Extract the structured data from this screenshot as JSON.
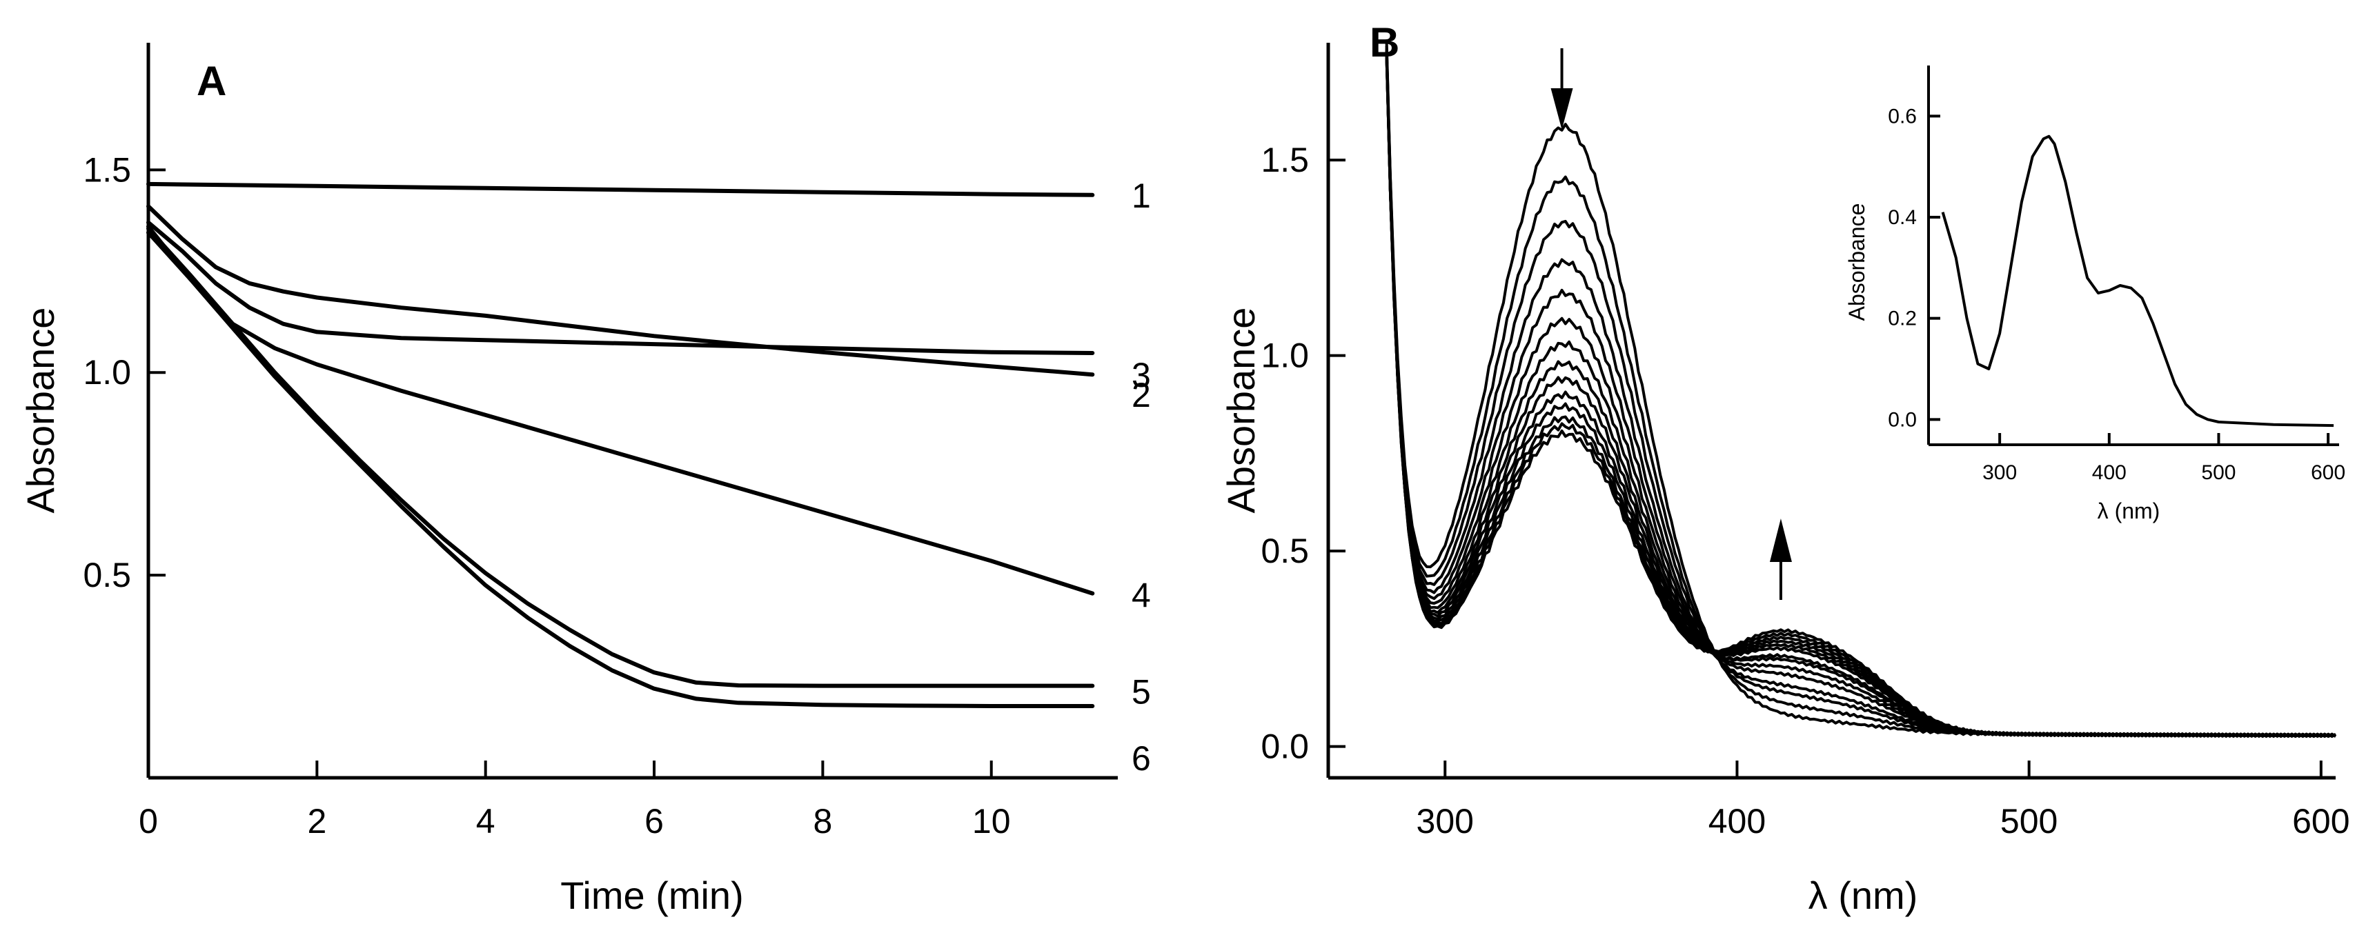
{
  "chart_data": [
    {
      "type": "line",
      "panel": "A",
      "xlabel": "Time (min)",
      "ylabel": "Absorbance",
      "xlim": [
        0,
        11.5
      ],
      "ylim": [
        0,
        1.8
      ],
      "xticks": [
        0,
        2,
        4,
        6,
        8,
        10
      ],
      "yticks": [
        0.5,
        1.0,
        1.5
      ],
      "series": [
        {
          "name": "1",
          "x": [
            0,
            2,
            4,
            6,
            8,
            10,
            11.2
          ],
          "y": [
            1.465,
            1.46,
            1.455,
            1.45,
            1.445,
            1.44,
            1.438
          ]
        },
        {
          "name": "2",
          "x": [
            0,
            0.4,
            0.8,
            1.2,
            1.6,
            2,
            3,
            4,
            6,
            8,
            10,
            11.2
          ],
          "y": [
            1.37,
            1.3,
            1.22,
            1.16,
            1.12,
            1.1,
            1.085,
            1.08,
            1.07,
            1.06,
            1.05,
            1.048
          ]
        },
        {
          "name": "3",
          "x": [
            0,
            0.4,
            0.8,
            1.2,
            1.6,
            2,
            3,
            4,
            6,
            8,
            10,
            11.2
          ],
          "y": [
            1.41,
            1.33,
            1.26,
            1.22,
            1.2,
            1.185,
            1.16,
            1.14,
            1.09,
            1.05,
            1.015,
            0.995
          ]
        },
        {
          "name": "4",
          "x": [
            0,
            0.5,
            1,
            1.5,
            2,
            3,
            4,
            5,
            6,
            7,
            8,
            9,
            10,
            11.2
          ],
          "y": [
            1.36,
            1.23,
            1.12,
            1.06,
            1.02,
            0.955,
            0.895,
            0.835,
            0.775,
            0.715,
            0.655,
            0.595,
            0.535,
            0.455
          ]
        },
        {
          "name": "5",
          "x": [
            0,
            0.5,
            1,
            1.5,
            2,
            2.5,
            3,
            3.5,
            4,
            4.5,
            5,
            5.5,
            6,
            6.5,
            7,
            8,
            9,
            10,
            11.2
          ],
          "y": [
            1.355,
            1.24,
            1.12,
            1.0,
            0.89,
            0.785,
            0.685,
            0.59,
            0.505,
            0.43,
            0.365,
            0.305,
            0.26,
            0.235,
            0.228,
            0.227,
            0.227,
            0.227,
            0.227
          ]
        },
        {
          "name": "6",
          "x": [
            0,
            0.5,
            1,
            1.5,
            2,
            2.5,
            3,
            3.5,
            4,
            4.5,
            5,
            5.5,
            6,
            6.5,
            7,
            8,
            9,
            10,
            11.2
          ],
          "y": [
            1.345,
            1.23,
            1.11,
            0.99,
            0.88,
            0.775,
            0.67,
            0.57,
            0.475,
            0.395,
            0.325,
            0.265,
            0.22,
            0.195,
            0.185,
            0.18,
            0.178,
            0.177,
            0.177
          ]
        }
      ],
      "curve_labels": [
        "1",
        "2",
        "3",
        "4",
        "5",
        "6"
      ]
    },
    {
      "type": "line",
      "panel": "B",
      "xlabel": "λ (nm)",
      "ylabel": "Absorbance",
      "xlim": [
        260,
        605
      ],
      "ylim": [
        -0.08,
        1.8
      ],
      "xticks": [
        300,
        400,
        500,
        600
      ],
      "yticks": [
        0.0,
        0.5,
        1.0,
        1.5
      ],
      "spectra_count": 14,
      "spectrum_peak_340nm": [
        1.565,
        1.43,
        1.32,
        1.22,
        1.14,
        1.07,
        1.01,
        0.96,
        0.92,
        0.88,
        0.85,
        0.82,
        0.8,
        0.78
      ],
      "spectrum_band_420nm": [
        0.07,
        0.1,
        0.13,
        0.15,
        0.18,
        0.2,
        0.22,
        0.23,
        0.25,
        0.26,
        0.27,
        0.28,
        0.29,
        0.3
      ],
      "annotations": [
        "arrow down at 340 nm",
        "arrow up at 415 nm"
      ],
      "inset": {
        "type": "line",
        "xlabel": "λ (nm)",
        "ylabel": "Absorbance",
        "xlim": [
          235,
          610
        ],
        "ylim": [
          -0.05,
          0.7
        ],
        "xticks": [
          300,
          400,
          500,
          600
        ],
        "yticks": [
          0.0,
          0.2,
          0.4,
          0.6
        ],
        "x": [
          248,
          260,
          270,
          280,
          290,
          300,
          310,
          320,
          330,
          340,
          345,
          350,
          360,
          370,
          380,
          390,
          400,
          410,
          420,
          430,
          440,
          450,
          460,
          470,
          480,
          490,
          500,
          550,
          605
        ],
        "y": [
          0.41,
          0.32,
          0.2,
          0.11,
          0.1,
          0.17,
          0.3,
          0.43,
          0.52,
          0.555,
          0.56,
          0.545,
          0.47,
          0.37,
          0.28,
          0.25,
          0.255,
          0.265,
          0.26,
          0.24,
          0.19,
          0.13,
          0.07,
          0.03,
          0.01,
          0.0,
          -0.005,
          -0.01,
          -0.012
        ]
      }
    }
  ]
}
